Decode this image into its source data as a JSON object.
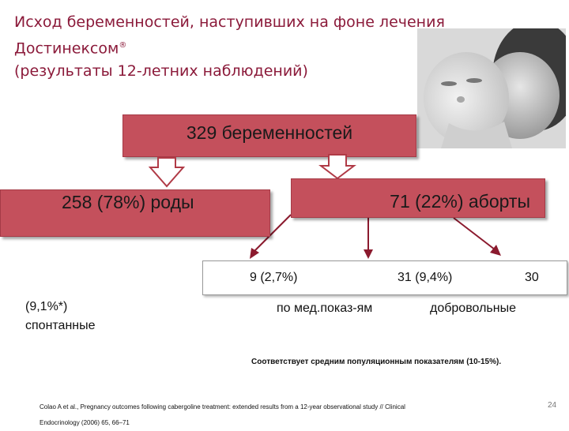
{
  "title": {
    "line1": "Исход беременностей, наступивших на фоне лечения",
    "line2": "Достинексом",
    "line2_mark": "®",
    "line3": "(результаты 12-летних наблюдений)"
  },
  "photo": {
    "icon": "mother-breastfeeding-baby-photo"
  },
  "boxes": {
    "main": "329 беременностей",
    "births": "258 (78%) роды",
    "abortions": "71 (22%) аборты"
  },
  "breakdown": {
    "value_1": "9 (2,7%)",
    "value_2": "31 (9,4%)",
    "value_3": "30",
    "label_medical": "по мед.показ-ям",
    "label_voluntary": "добровольные",
    "spontaneous_pct": "(9,1%*)",
    "spontaneous_label": "спонтанные"
  },
  "footnote": "Соответствует средним популяционным показателям (10-15%).",
  "citation": {
    "line1": "Colao A et al., Pregnancy outcomes following cabergoline treatment: extended results from a 12-year observational study // Clinical",
    "line2": "Endocrinology (2006) 65, 66–71"
  },
  "page_number": "24",
  "colors": {
    "title": "#8b1a3a",
    "box_fill": "#c4505c",
    "arrow_dark": "#8b1a2e"
  }
}
